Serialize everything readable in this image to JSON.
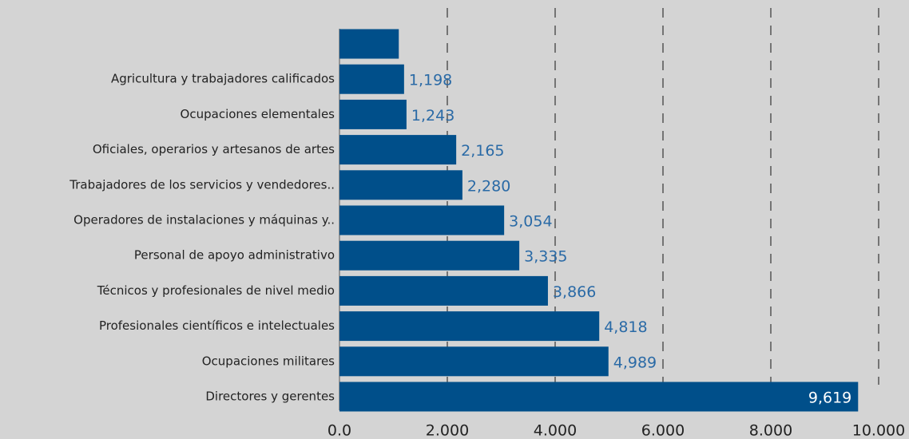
{
  "chart_data": {
    "type": "bar",
    "orientation": "horizontal",
    "categories": [
      null,
      "Agricultura y trabajadores calificados",
      "Ocupaciones elementales",
      "Oficiales, operarios y artesanos de artes",
      "Trabajadores de los servicios y vendedores..",
      "Operadores de instalaciones y máquinas y..",
      "Personal de apoyo administrativo",
      "Técnicos y profesionales de nivel medio",
      "Profesionales científicos e intelectuales",
      "Ocupaciones militares",
      "Directores y gerentes"
    ],
    "values": [
      1100,
      1198,
      1243,
      2165,
      2280,
      3054,
      3335,
      3866,
      4818,
      4989,
      9619
    ],
    "value_labels": [
      null,
      "1,198",
      "1,243",
      "2,165",
      "2,280",
      "3,054",
      "3,335",
      "3,866",
      "4,818",
      "4,989",
      "9,619"
    ],
    "color": "#004f8a",
    "xlim": [
      0,
      10000
    ],
    "xticks": [
      {
        "value": 0,
        "label": "0.0"
      },
      {
        "value": 2000,
        "label": "2.000"
      },
      {
        "value": 4000,
        "label": "4.000"
      },
      {
        "value": 6000,
        "label": "6.000"
      },
      {
        "value": 8000,
        "label": "8.000"
      },
      {
        "value": 10000,
        "label": "10.000"
      }
    ],
    "grid": true
  }
}
